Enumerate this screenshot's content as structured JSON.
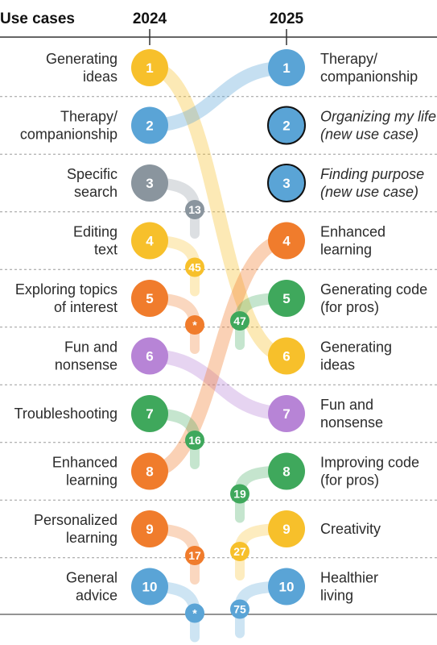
{
  "header": {
    "title": "Use cases",
    "year_left": "2024",
    "year_right": "2025"
  },
  "chart_data": {
    "type": "slope-ranking",
    "columns": [
      "2024",
      "2025"
    ],
    "colors": {
      "yellow": "#f7c02b",
      "blue": "#5aa4d6",
      "gray": "#8a959e",
      "orange": "#f07c2c",
      "purple": "#b784d6",
      "green": "#3fa85c"
    },
    "left": [
      {
        "rank": "1",
        "label": [
          "Generating",
          "ideas"
        ],
        "color": "yellow",
        "rank_2025": "6"
      },
      {
        "rank": "2",
        "label": [
          "Therapy/",
          "companionship"
        ],
        "color": "blue",
        "rank_2025": "1"
      },
      {
        "rank": "3",
        "label": [
          "Specific",
          "search"
        ],
        "color": "gray",
        "rank_2025": "13"
      },
      {
        "rank": "4",
        "label": [
          "Editing",
          "text"
        ],
        "color": "yellow",
        "rank_2025": "45"
      },
      {
        "rank": "5",
        "label": [
          "Exploring topics",
          "of interest"
        ],
        "color": "orange",
        "rank_2025": "*"
      },
      {
        "rank": "6",
        "label": [
          "Fun and",
          "nonsense"
        ],
        "color": "purple",
        "rank_2025": "7"
      },
      {
        "rank": "7",
        "label": [
          "Troubleshooting"
        ],
        "color": "green",
        "rank_2025": "16"
      },
      {
        "rank": "8",
        "label": [
          "Enhanced",
          "learning"
        ],
        "color": "orange",
        "rank_2025": "4"
      },
      {
        "rank": "9",
        "label": [
          "Personalized",
          "learning"
        ],
        "color": "orange",
        "rank_2025": "17"
      },
      {
        "rank": "10",
        "label": [
          "General",
          "advice"
        ],
        "color": "blue",
        "rank_2025": "*"
      }
    ],
    "right": [
      {
        "rank": "1",
        "label": [
          "Therapy/",
          "companionship"
        ],
        "color": "blue",
        "italic": false,
        "outlined": false,
        "rank_2024": "2"
      },
      {
        "rank": "2",
        "label": [
          "Organizing my life",
          "(new use case)"
        ],
        "color": "blue",
        "italic": true,
        "outlined": true,
        "rank_2024": null
      },
      {
        "rank": "3",
        "label": [
          "Finding purpose",
          "(new use case)"
        ],
        "color": "blue",
        "italic": true,
        "outlined": true,
        "rank_2024": null
      },
      {
        "rank": "4",
        "label": [
          "Enhanced",
          "learning"
        ],
        "color": "orange",
        "italic": false,
        "outlined": false,
        "rank_2024": "8"
      },
      {
        "rank": "5",
        "label": [
          "Generating code",
          "(for pros)"
        ],
        "color": "green",
        "italic": false,
        "outlined": false,
        "rank_2024": "47"
      },
      {
        "rank": "6",
        "label": [
          "Generating",
          "ideas"
        ],
        "color": "yellow",
        "italic": false,
        "outlined": false,
        "rank_2024": "1"
      },
      {
        "rank": "7",
        "label": [
          "Fun and",
          "nonsense"
        ],
        "color": "purple",
        "italic": false,
        "outlined": false,
        "rank_2024": "6"
      },
      {
        "rank": "8",
        "label": [
          "Improving code",
          "(for pros)"
        ],
        "color": "green",
        "italic": false,
        "outlined": false,
        "rank_2024": "19"
      },
      {
        "rank": "9",
        "label": [
          "Creativity"
        ],
        "color": "yellow",
        "italic": false,
        "outlined": false,
        "rank_2024": "27"
      },
      {
        "rank": "10",
        "label": [
          "Healthier",
          "living"
        ],
        "color": "blue",
        "italic": false,
        "outlined": false,
        "rank_2024": "75"
      }
    ]
  }
}
